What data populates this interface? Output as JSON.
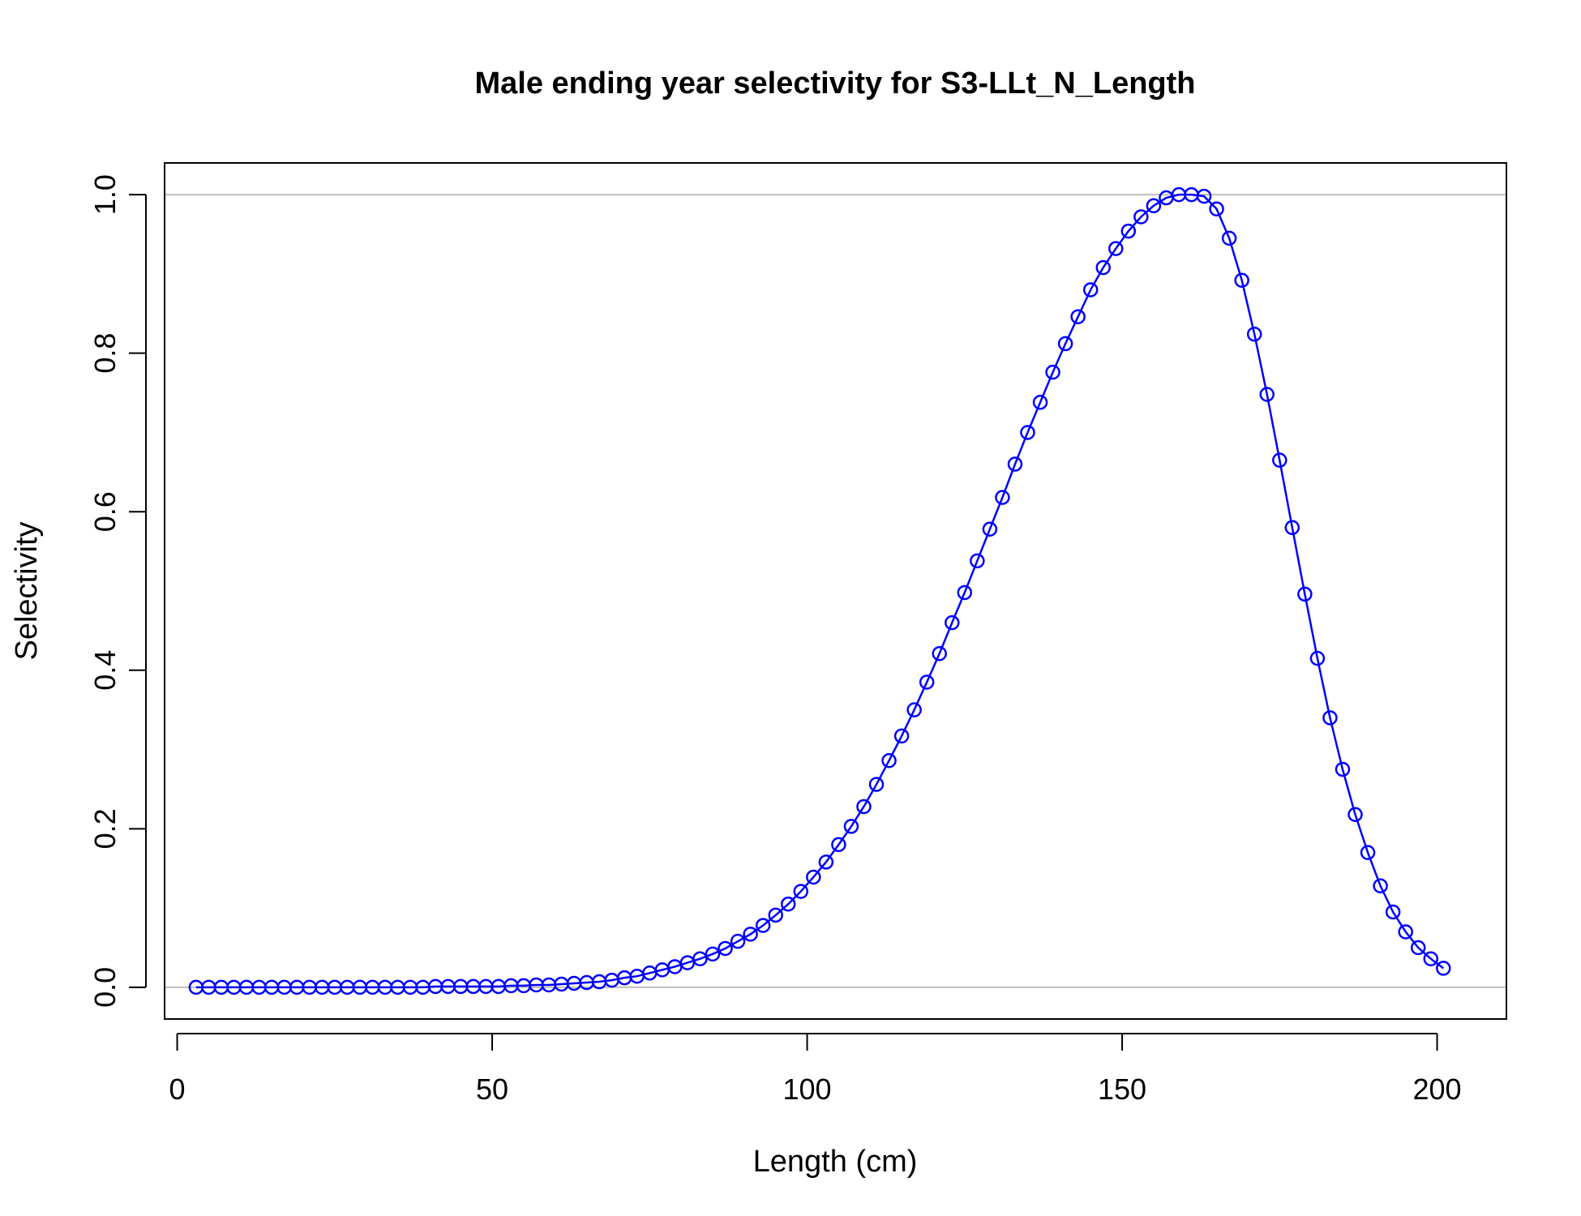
{
  "chart_data": {
    "type": "line",
    "title": "Male ending year selectivity for S3-LLt_N_Length",
    "xlabel": "Length (cm)",
    "ylabel": "Selectivity",
    "xlim": [
      -2,
      211
    ],
    "ylim": [
      -0.04,
      1.04
    ],
    "xticks": [
      0,
      50,
      100,
      150,
      200
    ],
    "yticks": [
      0.0,
      0.2,
      0.4,
      0.6,
      0.8,
      1.0
    ],
    "ytick_labels": [
      "0.0",
      "0.2",
      "0.4",
      "0.6",
      "0.8",
      "1.0"
    ],
    "reference_lines_y": [
      0.0,
      1.0
    ],
    "grid": false,
    "series": [
      {
        "color": "#0000ff",
        "marker": "open-circle",
        "x": [
          3,
          5,
          7,
          9,
          11,
          13,
          15,
          17,
          19,
          21,
          23,
          25,
          27,
          29,
          31,
          33,
          35,
          37,
          39,
          41,
          43,
          45,
          47,
          49,
          51,
          53,
          55,
          57,
          59,
          61,
          63,
          65,
          67,
          69,
          71,
          73,
          75,
          77,
          79,
          81,
          83,
          85,
          87,
          89,
          91,
          93,
          95,
          97,
          99,
          101,
          103,
          105,
          107,
          109,
          111,
          113,
          115,
          117,
          119,
          121,
          123,
          125,
          127,
          129,
          131,
          133,
          135,
          137,
          139,
          141,
          143,
          145,
          147,
          149,
          151,
          153,
          155,
          157,
          159,
          161,
          163,
          165,
          167,
          169,
          171,
          173,
          175,
          177,
          179,
          181,
          183,
          185,
          187,
          189,
          191,
          193,
          195,
          197,
          199,
          201
        ],
        "y": [
          0.0,
          0.0,
          0.0,
          0.0,
          0.0,
          0.0,
          0.0,
          0.0,
          0.0,
          0.0,
          0.0,
          0.0,
          0.0,
          0.0,
          0.0,
          0.0,
          0.0,
          0.0,
          0.0,
          0.001,
          0.001,
          0.001,
          0.001,
          0.001,
          0.001,
          0.002,
          0.002,
          0.003,
          0.003,
          0.004,
          0.005,
          0.006,
          0.007,
          0.009,
          0.012,
          0.014,
          0.018,
          0.022,
          0.026,
          0.031,
          0.036,
          0.042,
          0.049,
          0.058,
          0.067,
          0.078,
          0.091,
          0.105,
          0.121,
          0.139,
          0.158,
          0.18,
          0.203,
          0.228,
          0.256,
          0.286,
          0.317,
          0.35,
          0.385,
          0.421,
          0.46,
          0.498,
          0.538,
          0.578,
          0.618,
          0.66,
          0.7,
          0.738,
          0.776,
          0.812,
          0.846,
          0.88,
          0.908,
          0.932,
          0.954,
          0.972,
          0.986,
          0.996,
          1.0,
          1.0,
          0.998,
          0.982,
          0.945,
          0.892,
          0.824,
          0.748,
          0.665,
          0.58,
          0.496,
          0.415,
          0.34,
          0.275,
          0.218,
          0.17,
          0.128,
          0.095,
          0.07,
          0.05,
          0.036,
          0.024
        ]
      }
    ]
  }
}
